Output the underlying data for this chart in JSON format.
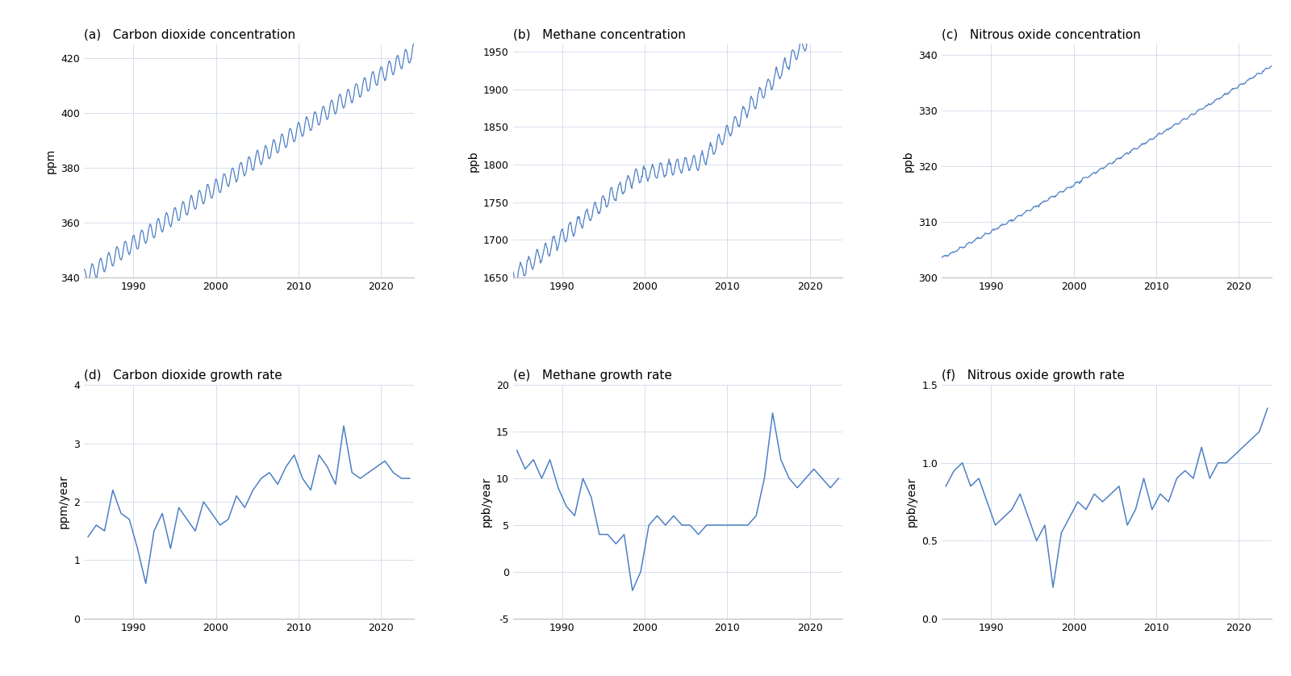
{
  "line_color": "#4d7fc4",
  "background_color": "#ffffff",
  "grid_color": "#d0d8e8",
  "subplot_titles": [
    "(a)   Carbon dioxide concentration",
    "(b)   Methane concentration",
    "(c)   Nitrous oxide concentration",
    "(d)   Carbon dioxide growth rate",
    "(e)   Methane growth rate",
    "(f)   Nitrous oxide growth rate"
  ],
  "ylabels": [
    "ppm",
    "ppb",
    "ppb",
    "ppm/year",
    "ppb/year",
    "ppb/year"
  ],
  "co2_ylim": [
    340,
    425
  ],
  "ch4_ylim": [
    1650,
    1960
  ],
  "n2o_ylim": [
    300,
    342
  ],
  "co2_gr_ylim": [
    0,
    4
  ],
  "ch4_gr_ylim": [
    -5,
    20
  ],
  "n2o_gr_ylim": [
    0.0,
    1.5
  ],
  "xlim": [
    1984,
    2024
  ],
  "xticks": [
    1990,
    2000,
    2010,
    2020
  ],
  "co2_gr": [
    1.4,
    1.6,
    1.5,
    2.2,
    1.8,
    1.7,
    1.2,
    0.6,
    1.5,
    1.8,
    1.2,
    1.9,
    1.7,
    1.5,
    2.0,
    1.8,
    1.6,
    1.7,
    2.1,
    1.9,
    2.2,
    2.4,
    2.5,
    2.3,
    2.6,
    2.8,
    2.4,
    2.2,
    2.8,
    2.6,
    2.3,
    3.3,
    2.5,
    2.4,
    2.5,
    2.6,
    2.7,
    2.5,
    2.4,
    2.4
  ],
  "ch4_gr": [
    13,
    11,
    12,
    10,
    12,
    9,
    7,
    6,
    10,
    8,
    4,
    4,
    3,
    4,
    -2,
    0,
    5,
    6,
    5,
    6,
    5,
    5,
    4,
    5,
    5,
    5,
    5,
    5,
    5,
    6,
    10,
    17,
    12,
    10,
    9,
    10,
    11,
    10,
    9,
    10
  ],
  "n2o_gr": [
    0.85,
    0.95,
    1.0,
    0.85,
    0.9,
    0.75,
    0.6,
    0.65,
    0.7,
    0.8,
    0.65,
    0.5,
    0.6,
    0.2,
    0.55,
    0.65,
    0.75,
    0.7,
    0.8,
    0.75,
    0.8,
    0.85,
    0.6,
    0.7,
    0.9,
    0.7,
    0.8,
    0.75,
    0.9,
    0.95,
    0.9,
    1.1,
    0.9,
    1.0,
    1.0,
    1.05,
    1.1,
    1.15,
    1.2,
    1.35
  ]
}
